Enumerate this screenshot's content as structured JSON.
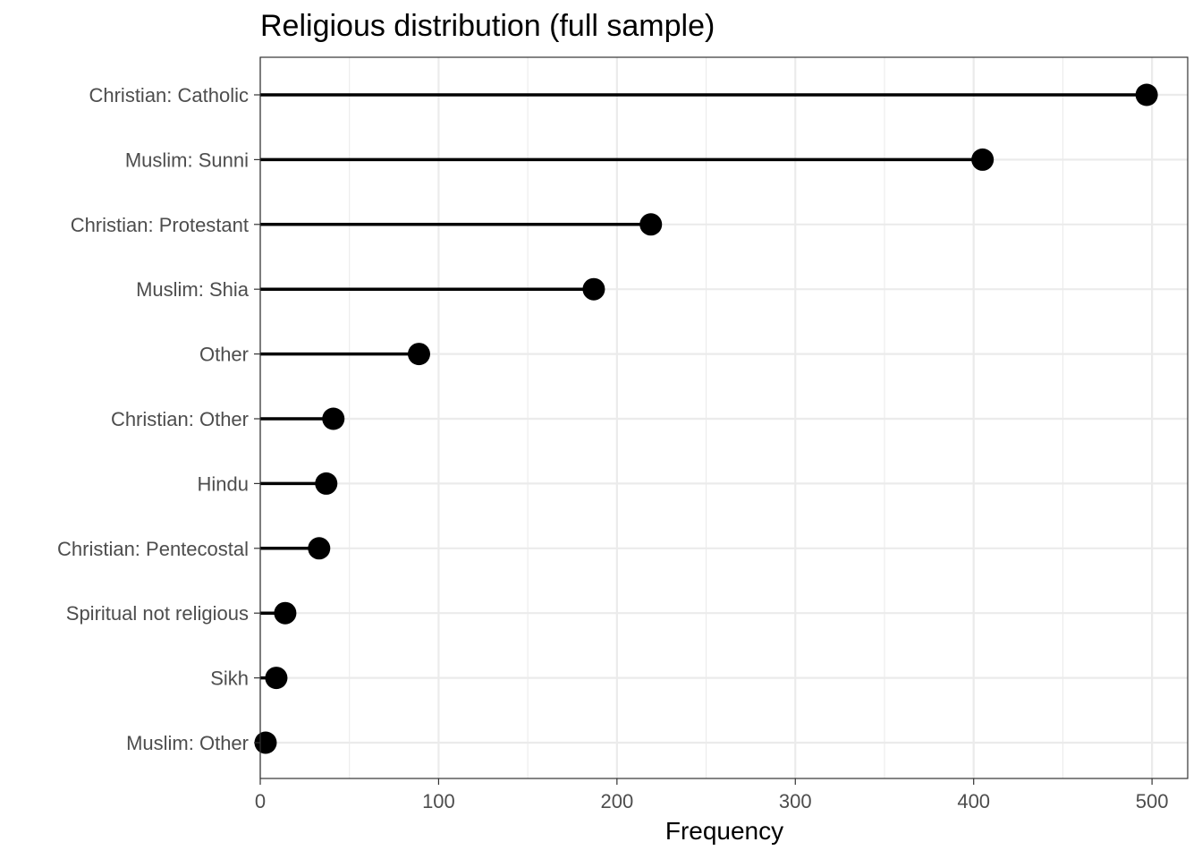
{
  "chart_data": {
    "type": "lollipop",
    "title": "Religious distribution (full sample)",
    "xlabel": "Frequency",
    "ylabel": "",
    "xlim": [
      0,
      520
    ],
    "x_ticks": [
      0,
      100,
      200,
      300,
      400,
      500
    ],
    "x_tick_labels": [
      "0",
      "100",
      "200",
      "300",
      "400",
      "500"
    ],
    "grid": true,
    "legend": "none",
    "colors": {
      "marks": "#000000",
      "grid": "#ebebeb",
      "panel_border": "#333333",
      "axis_text": "#4d4d4d"
    },
    "categories": [
      "Christian: Catholic",
      "Muslim: Sunni",
      "Christian: Protestant",
      "Muslim: Shia",
      "Other",
      "Christian: Other",
      "Hindu",
      "Christian: Pentecostal",
      "Spiritual not religious",
      "Sikh",
      "Muslim: Other"
    ],
    "values": [
      497,
      405,
      219,
      187,
      89,
      41,
      37,
      33,
      14,
      9,
      3
    ]
  }
}
